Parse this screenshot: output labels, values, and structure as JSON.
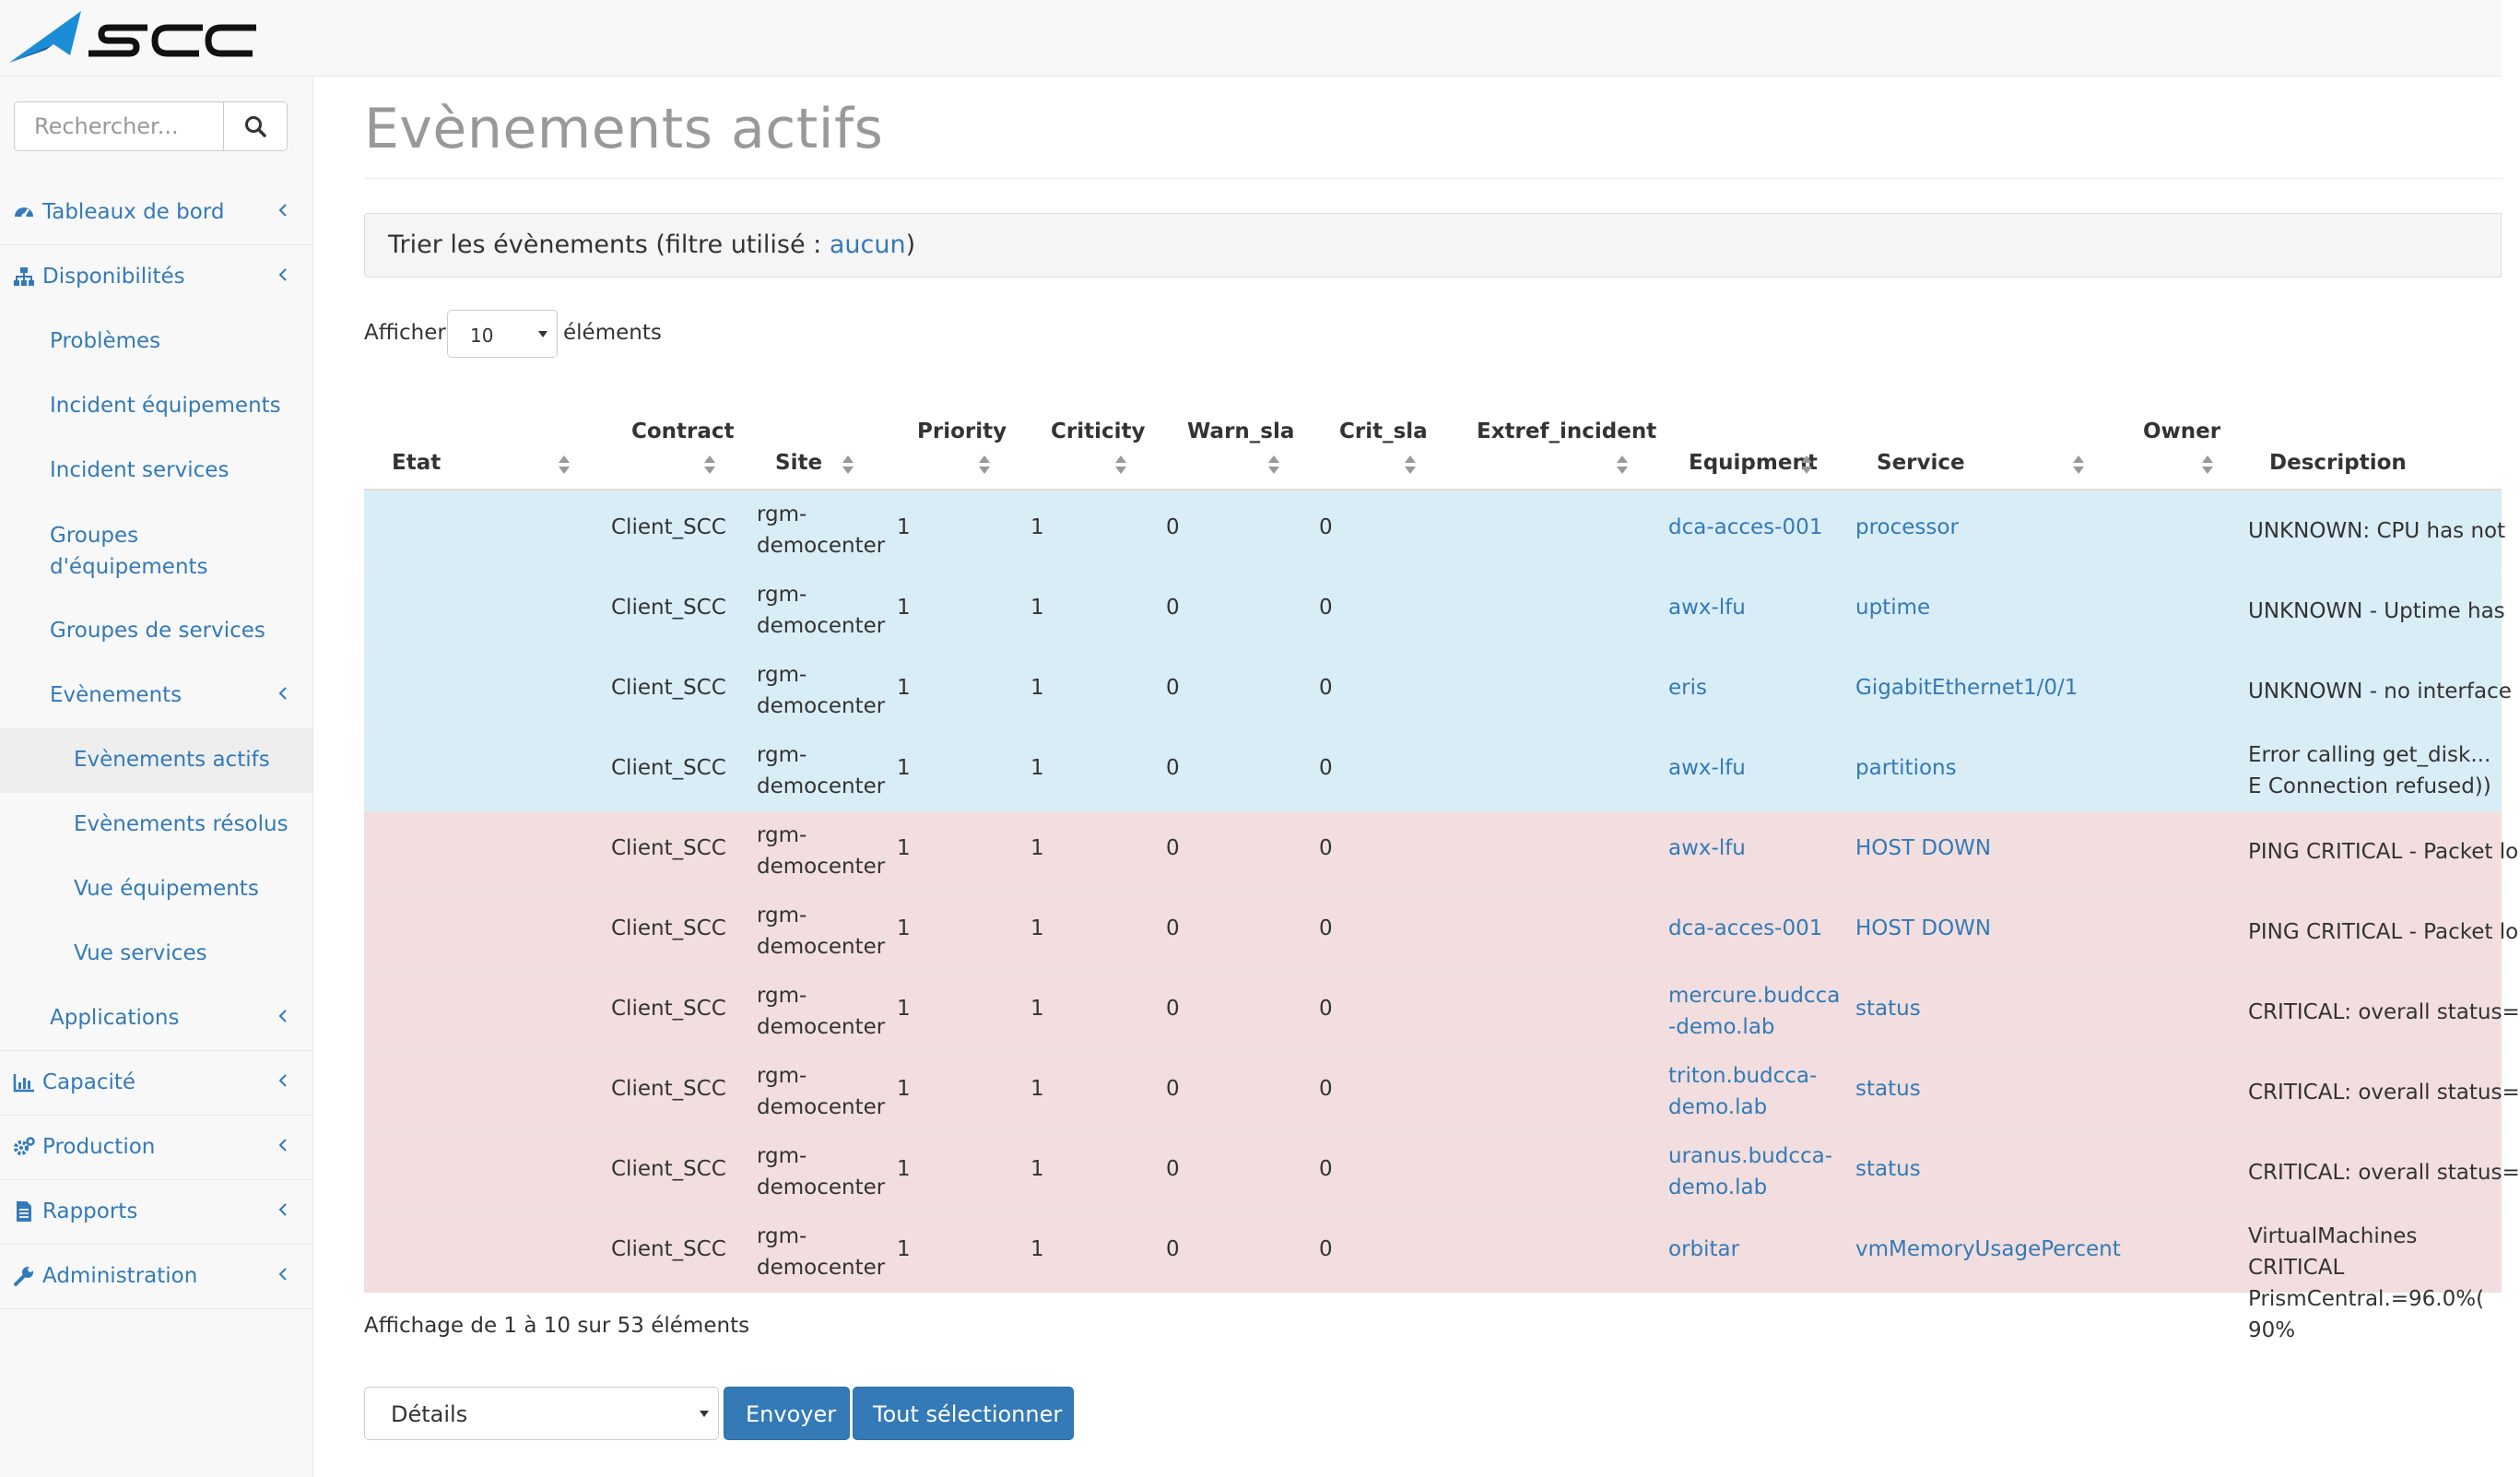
{
  "brand": {
    "name": "SCC",
    "color": "#1a8dd6"
  },
  "search": {
    "placeholder": "Rechercher..."
  },
  "sidebar": {
    "items": [
      {
        "label": "Tableaux de bord",
        "icon": "dashboard-icon"
      },
      {
        "label": "Disponibilités",
        "icon": "sitemap-icon"
      },
      {
        "label": "Problèmes"
      },
      {
        "label": "Incident équipements"
      },
      {
        "label": "Incident services"
      },
      {
        "label": "Groupes d'équipements"
      },
      {
        "label": "Groupes de services"
      },
      {
        "label": "Evènements"
      },
      {
        "label": "Evènements actifs"
      },
      {
        "label": "Evènements résolus"
      },
      {
        "label": "Vue équipements"
      },
      {
        "label": "Vue services"
      },
      {
        "label": "Applications"
      },
      {
        "label": "Capacité",
        "icon": "bar-chart-icon"
      },
      {
        "label": "Production",
        "icon": "cogs-icon"
      },
      {
        "label": "Rapports",
        "icon": "file-text-icon"
      },
      {
        "label": "Administration",
        "icon": "wrench-icon"
      }
    ]
  },
  "page": {
    "title": "Evènements actifs"
  },
  "filter": {
    "prefix": "Trier les évènements (filtre utilisé : ",
    "link": "aucun",
    "suffix": ")"
  },
  "length": {
    "prefix": "Afficher",
    "value": "10",
    "suffix": "éléments"
  },
  "table": {
    "columns": [
      "Etat",
      "Contract",
      "Site",
      "Priority",
      "Criticity",
      "Warn_sla",
      "Crit_sla",
      "Extref_incident",
      "Equipment",
      "Service",
      "Owner",
      "Description"
    ],
    "rows": [
      {
        "status": "info",
        "contract": "Client_SCC",
        "site": "rgm-democenter",
        "priority": "1",
        "criticity": "1",
        "warn": "0",
        "crit": "0",
        "equipment": "dca-acces-001",
        "service": "processor",
        "description": "UNKNOWN: CPU has not"
      },
      {
        "status": "info",
        "contract": "Client_SCC",
        "site": "rgm-democenter",
        "priority": "1",
        "criticity": "1",
        "warn": "0",
        "crit": "0",
        "equipment": "awx-lfu",
        "service": "uptime",
        "description": "UNKNOWN - Uptime has"
      },
      {
        "status": "info",
        "contract": "Client_SCC",
        "site": "rgm-democenter",
        "priority": "1",
        "criticity": "1",
        "warn": "0",
        "crit": "0",
        "equipment": "eris",
        "service": "GigabitEthernet1/0/1",
        "description": "UNKNOWN - no interface"
      },
      {
        "status": "info",
        "contract": "Client_SCC",
        "site": "rgm-democenter",
        "priority": "1",
        "criticity": "1",
        "warn": "0",
        "crit": "0",
        "equipment": "awx-lfu",
        "service": "partitions",
        "description": "Error calling get_disk... E Connection refused))"
      },
      {
        "status": "danger",
        "contract": "Client_SCC",
        "site": "rgm-democenter",
        "priority": "1",
        "criticity": "1",
        "warn": "0",
        "crit": "0",
        "equipment": "awx-lfu",
        "service": "HOST DOWN",
        "description": "PING CRITICAL - Packet lo"
      },
      {
        "status": "danger",
        "contract": "Client_SCC",
        "site": "rgm-democenter",
        "priority": "1",
        "criticity": "1",
        "warn": "0",
        "crit": "0",
        "equipment": "dca-acces-001",
        "service": "HOST DOWN",
        "description": "PING CRITICAL - Packet lo"
      },
      {
        "status": "danger",
        "contract": "Client_SCC",
        "site": "rgm-democenter",
        "priority": "1",
        "criticity": "1",
        "warn": "0",
        "crit": "0",
        "equipment": "mercure.budcca-demo.lab",
        "service": "status",
        "description": "CRITICAL: overall status="
      },
      {
        "status": "danger",
        "contract": "Client_SCC",
        "site": "rgm-democenter",
        "priority": "1",
        "criticity": "1",
        "warn": "0",
        "crit": "0",
        "equipment": "triton.budcca-demo.lab",
        "service": "status",
        "description": "CRITICAL: overall status="
      },
      {
        "status": "danger",
        "contract": "Client_SCC",
        "site": "rgm-democenter",
        "priority": "1",
        "criticity": "1",
        "warn": "0",
        "crit": "0",
        "equipment": "uranus.budcca-demo.lab",
        "service": "status",
        "description": "CRITICAL: overall status="
      },
      {
        "status": "danger",
        "contract": "Client_SCC",
        "site": "rgm-democenter",
        "priority": "1",
        "criticity": "1",
        "warn": "0",
        "crit": "0",
        "equipment": "orbitar",
        "service": "vmMemoryUsagePercent",
        "description": "VirtualMachines CRITICAL PrismCentral.=96.0%( 90%"
      }
    ]
  },
  "info": {
    "text": "Affichage de 1 à 10 sur 53 éléments"
  },
  "bulk": {
    "select_value": "Détails",
    "send_label": "Envoyer",
    "select_all_label": "Tout sélectionner"
  },
  "colors": {
    "info_row": "#d9edf7",
    "danger_row": "#f2dede",
    "link": "#337ab7",
    "primary": "#337ab7"
  }
}
